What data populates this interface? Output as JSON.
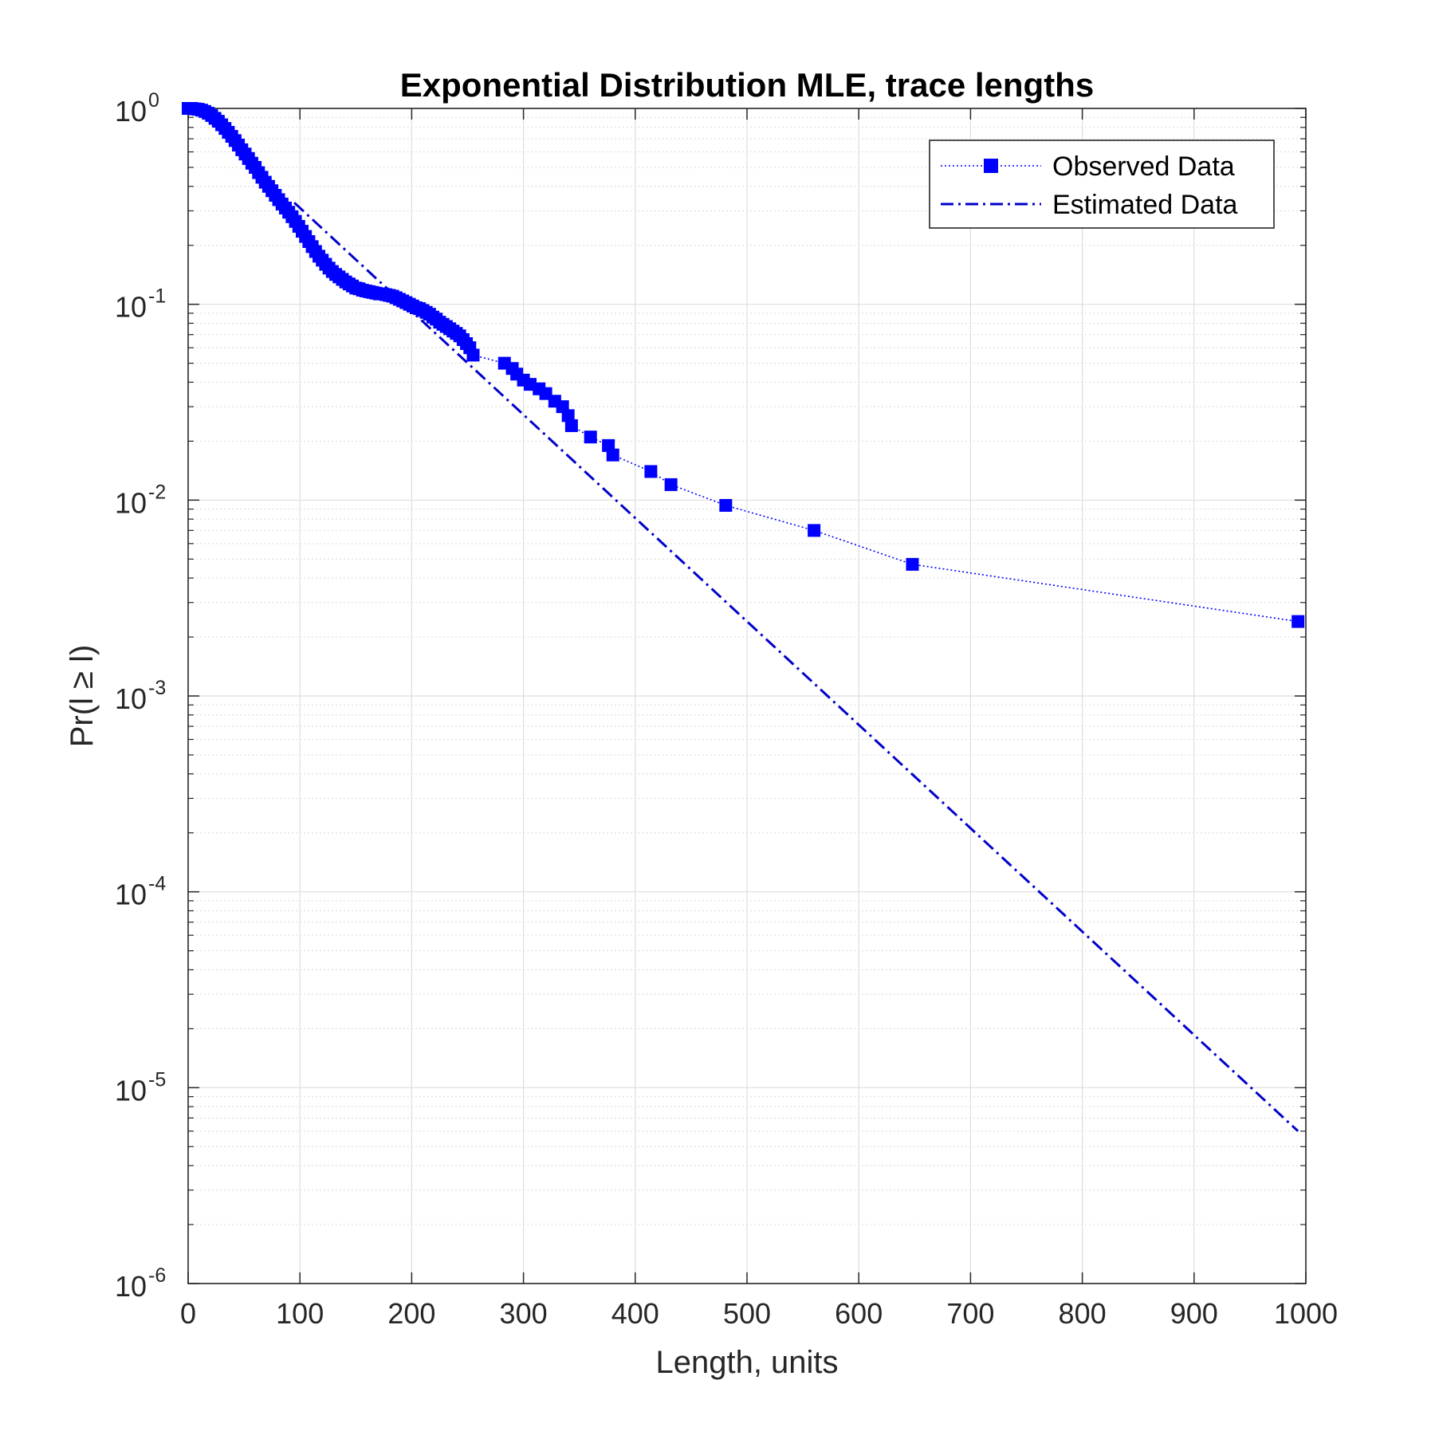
{
  "chart_data": {
    "type": "line",
    "title": "Exponential Distribution MLE, trace lengths",
    "xlabel": "Length, units",
    "ylabel": "Pr(l ≥ l)",
    "xlim": [
      0,
      1000
    ],
    "ylim": [
      1e-06,
      1
    ],
    "yscale": "log",
    "grid": true,
    "legend_position": "top-right",
    "x_ticks": [
      "0",
      "100",
      "200",
      "300",
      "400",
      "500",
      "600",
      "700",
      "800",
      "900",
      "1000"
    ],
    "y_ticks": [
      {
        "base": "10",
        "exp": "0",
        "value": 1
      },
      {
        "base": "10",
        "exp": "-1",
        "value": 0.1
      },
      {
        "base": "10",
        "exp": "-2",
        "value": 0.01
      },
      {
        "base": "10",
        "exp": "-3",
        "value": 0.001
      },
      {
        "base": "10",
        "exp": "-4",
        "value": 0.0001
      },
      {
        "base": "10",
        "exp": "-5",
        "value": 1e-05
      },
      {
        "base": "10",
        "exp": "-6",
        "value": 1e-06
      }
    ],
    "series": [
      {
        "name": "Observed Data",
        "color": "#0000ff",
        "line_style": "dotted",
        "marker": "square",
        "x": [
          0,
          3,
          6,
          9,
          12,
          15,
          18,
          21,
          24,
          27,
          30,
          33,
          36,
          39,
          42,
          45,
          48,
          51,
          54,
          57,
          60,
          63,
          66,
          69,
          72,
          75,
          78,
          81,
          84,
          87,
          90,
          93,
          96,
          99,
          102,
          105,
          108,
          111,
          114,
          117,
          120,
          123,
          126,
          129,
          132,
          135,
          138,
          141,
          144,
          147,
          150,
          153,
          156,
          159,
          162,
          165,
          168,
          171,
          174,
          177,
          180,
          183,
          186,
          189,
          192,
          195,
          198,
          201,
          204,
          207,
          210,
          213,
          216,
          219,
          222,
          225,
          228,
          231,
          234,
          237,
          240,
          243,
          246,
          249,
          252,
          255,
          283,
          290,
          294,
          300,
          306,
          314,
          320,
          328,
          335,
          340,
          343,
          360,
          376,
          380,
          414,
          432,
          481,
          560,
          648,
          993
        ],
        "y": [
          1.0,
          1.0,
          0.995,
          0.99,
          0.98,
          0.965,
          0.945,
          0.92,
          0.89,
          0.86,
          0.825,
          0.79,
          0.755,
          0.72,
          0.685,
          0.65,
          0.615,
          0.585,
          0.555,
          0.525,
          0.5,
          0.47,
          0.445,
          0.42,
          0.4,
          0.38,
          0.36,
          0.342,
          0.325,
          0.31,
          0.295,
          0.28,
          0.265,
          0.25,
          0.236,
          0.222,
          0.209,
          0.197,
          0.186,
          0.176,
          0.168,
          0.16,
          0.153,
          0.147,
          0.142,
          0.138,
          0.134,
          0.13,
          0.127,
          0.124,
          0.121,
          0.12,
          0.118,
          0.117,
          0.116,
          0.115,
          0.114,
          0.113,
          0.113,
          0.112,
          0.111,
          0.11,
          0.108,
          0.106,
          0.104,
          0.102,
          0.1,
          0.098,
          0.096,
          0.095,
          0.093,
          0.091,
          0.089,
          0.086,
          0.084,
          0.081,
          0.079,
          0.077,
          0.075,
          0.073,
          0.071,
          0.069,
          0.066,
          0.063,
          0.06,
          0.055,
          0.05,
          0.047,
          0.044,
          0.041,
          0.039,
          0.037,
          0.035,
          0.032,
          0.03,
          0.027,
          0.024,
          0.021,
          0.019,
          0.017,
          0.014,
          0.012,
          0.0094,
          0.007,
          0.0047,
          0.0024
        ]
      },
      {
        "name": "Estimated Data",
        "color": "#0000cc",
        "line_style": "dash-dot",
        "marker": "none",
        "x": [
          95,
          993
        ],
        "y": [
          0.33,
          6e-06
        ]
      }
    ]
  }
}
